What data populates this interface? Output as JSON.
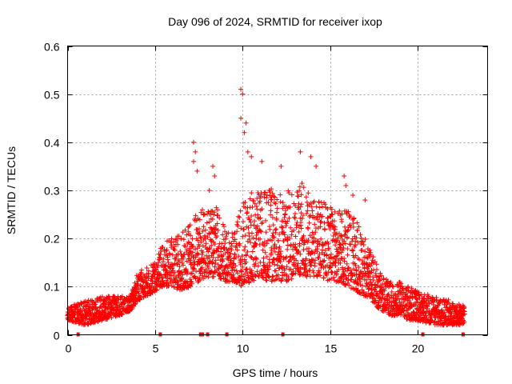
{
  "chart_data": {
    "type": "scatter",
    "title": "Day 096 of 2024, SRMTID for receiver ixop",
    "xlabel": "GPS time / hours",
    "ylabel": "SRMTID / TECUs",
    "xlim": [
      0,
      24
    ],
    "ylim": [
      0,
      0.6
    ],
    "grid": true,
    "marker": "+",
    "color": "#ff0000",
    "xticks": [
      0,
      5,
      10,
      15,
      20
    ],
    "xtick_labels": [
      "0",
      "5",
      "10",
      "15",
      "20"
    ],
    "yticks": [
      0,
      0.1,
      0.2,
      0.3,
      0.4,
      0.5,
      0.6
    ],
    "ytick_labels": [
      "0",
      "0.1",
      "0.2",
      "0.3",
      "0.4",
      "0.5",
      "0.6"
    ],
    "envelope": {
      "x": [
        0.0,
        1.0,
        2.0,
        3.0,
        3.6,
        4.0,
        4.5,
        5.0,
        5.5,
        6.0,
        6.5,
        7.0,
        7.5,
        8.0,
        8.5,
        9.0,
        9.5,
        10.0,
        10.5,
        11.0,
        11.5,
        12.0,
        12.5,
        13.0,
        13.5,
        14.0,
        14.5,
        15.0,
        15.5,
        16.0,
        16.5,
        17.0,
        17.5,
        18.0,
        18.5,
        19.0,
        19.5,
        20.0,
        21.0,
        22.0,
        22.7
      ],
      "low": [
        0.03,
        0.02,
        0.03,
        0.04,
        0.05,
        0.07,
        0.08,
        0.09,
        0.1,
        0.1,
        0.09,
        0.1,
        0.11,
        0.12,
        0.12,
        0.11,
        0.11,
        0.1,
        0.11,
        0.12,
        0.11,
        0.11,
        0.11,
        0.12,
        0.12,
        0.12,
        0.12,
        0.11,
        0.11,
        0.1,
        0.09,
        0.08,
        0.06,
        0.05,
        0.04,
        0.04,
        0.03,
        0.03,
        0.02,
        0.02,
        0.02
      ],
      "high": [
        0.06,
        0.07,
        0.08,
        0.08,
        0.08,
        0.13,
        0.14,
        0.15,
        0.2,
        0.2,
        0.21,
        0.23,
        0.26,
        0.26,
        0.27,
        0.22,
        0.21,
        0.28,
        0.3,
        0.3,
        0.31,
        0.29,
        0.3,
        0.31,
        0.32,
        0.29,
        0.28,
        0.27,
        0.26,
        0.26,
        0.24,
        0.2,
        0.16,
        0.12,
        0.11,
        0.11,
        0.1,
        0.09,
        0.08,
        0.07,
        0.06
      ]
    },
    "outliers": [
      {
        "x": 7.2,
        "y": 0.4
      },
      {
        "x": 7.3,
        "y": 0.38
      },
      {
        "x": 7.2,
        "y": 0.36
      },
      {
        "x": 7.4,
        "y": 0.34
      },
      {
        "x": 8.3,
        "y": 0.35
      },
      {
        "x": 8.4,
        "y": 0.33
      },
      {
        "x": 8.1,
        "y": 0.3
      },
      {
        "x": 9.9,
        "y": 0.51
      },
      {
        "x": 10.0,
        "y": 0.5
      },
      {
        "x": 9.9,
        "y": 0.45
      },
      {
        "x": 10.2,
        "y": 0.44
      },
      {
        "x": 10.1,
        "y": 0.42
      },
      {
        "x": 10.3,
        "y": 0.38
      },
      {
        "x": 10.5,
        "y": 0.37
      },
      {
        "x": 11.1,
        "y": 0.36
      },
      {
        "x": 12.2,
        "y": 0.35
      },
      {
        "x": 13.3,
        "y": 0.38
      },
      {
        "x": 13.9,
        "y": 0.37
      },
      {
        "x": 14.2,
        "y": 0.35
      },
      {
        "x": 15.8,
        "y": 0.33
      },
      {
        "x": 15.9,
        "y": 0.31
      },
      {
        "x": 16.3,
        "y": 0.29
      },
      {
        "x": 17.0,
        "y": 0.28
      }
    ],
    "zero_markers": [
      {
        "x": 0.6,
        "y": 0
      },
      {
        "x": 5.3,
        "y": 0
      },
      {
        "x": 7.6,
        "y": 0
      },
      {
        "x": 7.7,
        "y": 0
      },
      {
        "x": 8.0,
        "y": 0
      },
      {
        "x": 9.1,
        "y": 0
      },
      {
        "x": 12.3,
        "y": 0
      },
      {
        "x": 20.3,
        "y": 0
      },
      {
        "x": 22.6,
        "y": 0
      }
    ]
  }
}
